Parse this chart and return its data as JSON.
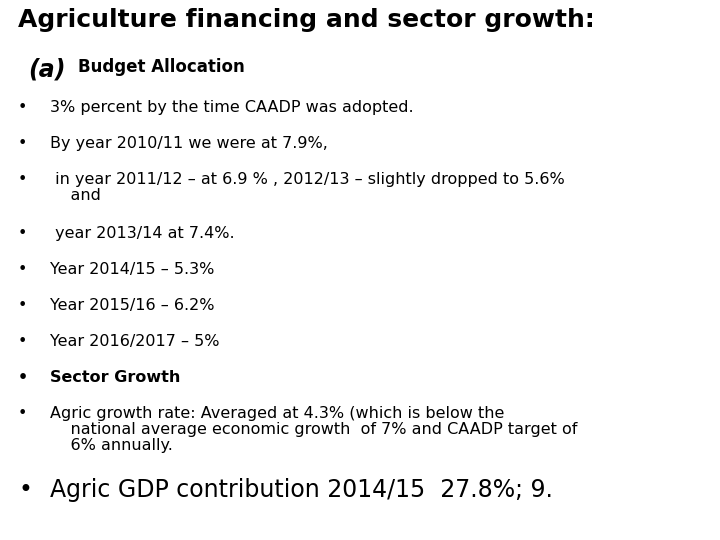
{
  "title": "Agriculture financing and sector growth:",
  "subtitle_label": "(a)",
  "subtitle_text": "Budget Allocation",
  "bg_color": "#ffffff",
  "text_color": "#000000",
  "title_fontsize": 18,
  "subtitle_label_fontsize": 17,
  "subtitle_text_fontsize": 12,
  "bullet_fontsize": 11.5,
  "last_bullet_fontsize": 17,
  "bullet_char": "•",
  "bullets": [
    {
      "text": "3% percent by the time CAADP was adopted.",
      "bold": false,
      "extra_lines": []
    },
    {
      "text": "By year 2010/11 we were at 7.9%,",
      "bold": false,
      "extra_lines": []
    },
    {
      "text": " in year 2011/12 – at 6.9 % , 2012/13 – slightly dropped to 5.6%",
      "bold": false,
      "extra_lines": [
        "    and"
      ]
    },
    {
      "text": " year 2013/14 at 7.4%.",
      "bold": false,
      "extra_lines": []
    },
    {
      "text": "Year 2014/15 – 5.3%",
      "bold": false,
      "extra_lines": []
    },
    {
      "text": "Year 2015/16 – 6.2%",
      "bold": false,
      "extra_lines": []
    },
    {
      "text": "Year 2016/2017 – 5%",
      "bold": false,
      "extra_lines": []
    },
    {
      "text": "Sector Growth",
      "bold": true,
      "extra_lines": []
    },
    {
      "text": "Agric growth rate: Averaged at 4.3% (which is below the",
      "bold": false,
      "extra_lines": [
        "    national average economic growth  of 7% and CAADP target of",
        "    6% annually."
      ]
    },
    {
      "text": "Agric GDP contribution 2014/15  27.8%; 9.",
      "bold": false,
      "extra_lines": [],
      "large": true
    }
  ]
}
